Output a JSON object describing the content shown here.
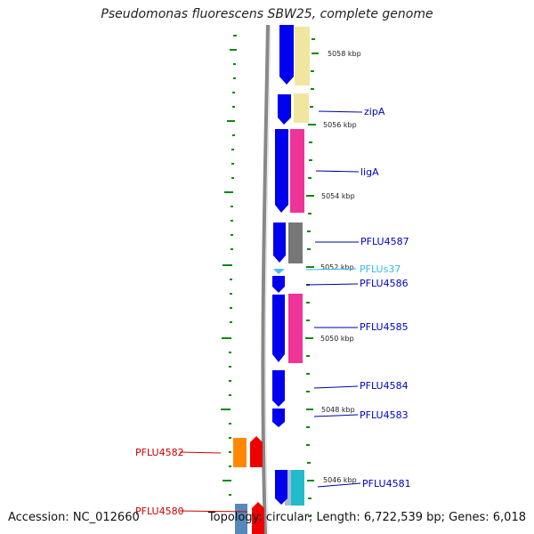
{
  "title": "Pseudomonas fluorescens SBW25, complete genome",
  "footer": {
    "accession": "Accession: NC_012660",
    "topology": "Topology: circular; Length: 6,722,539 bp; Genes: 6,018"
  },
  "scale_ticks": [
    "5058 kbp",
    "5056 kbp",
    "5054 kbp",
    "5052 kbp",
    "5050 kbp",
    "5048 kbp",
    "5046 kbp"
  ],
  "genes": [
    {
      "name": "zipA",
      "strand": "right",
      "color": "#0000cc"
    },
    {
      "name": "ligA",
      "strand": "right",
      "color": "#0000cc"
    },
    {
      "name": "PFLU4587",
      "strand": "right",
      "color": "#0000cc"
    },
    {
      "name": "PFLUs37",
      "strand": "right",
      "color": "#33bbee"
    },
    {
      "name": "PFLU4586",
      "strand": "right",
      "color": "#0000cc"
    },
    {
      "name": "PFLU4585",
      "strand": "right",
      "color": "#0000cc"
    },
    {
      "name": "PFLU4584",
      "strand": "right",
      "color": "#0000cc"
    },
    {
      "name": "PFLU4583",
      "strand": "right",
      "color": "#0000cc"
    },
    {
      "name": "PFLU4582",
      "strand": "left",
      "color": "#cc0000"
    },
    {
      "name": "PFLU4581",
      "strand": "right",
      "color": "#0000cc"
    },
    {
      "name": "PFLU4580",
      "strand": "left",
      "color": "#cc0000"
    }
  ],
  "colors": {
    "backbone": "#888888",
    "forward_gene": "#0000ee",
    "reverse_gene": "#ee0000",
    "tick": "#118811",
    "cog_yellow": "#f0e6a0",
    "cog_pink": "#ee3399",
    "cog_gray": "#777777",
    "cog_orange": "#ff8800",
    "cog_cyan": "#22bbcc",
    "rna": "#44bbff"
  }
}
